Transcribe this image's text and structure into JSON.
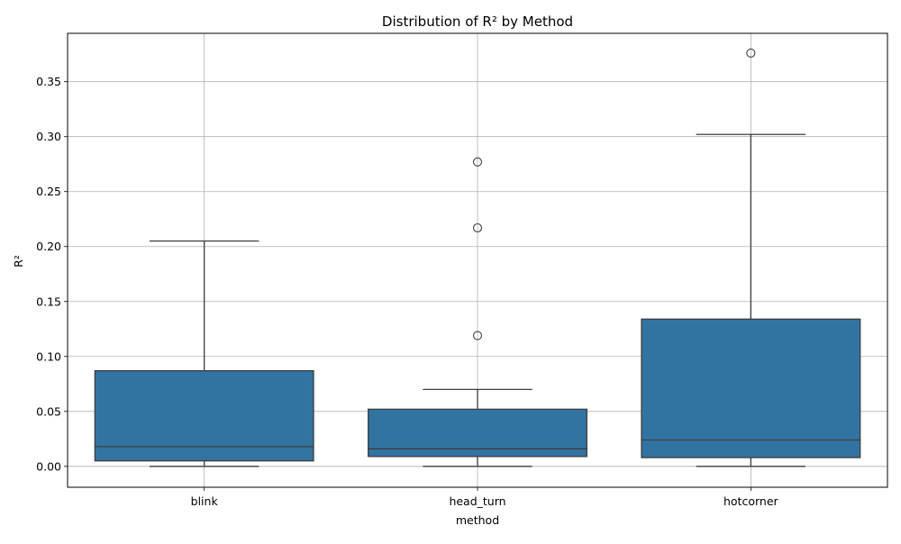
{
  "chart_data": {
    "type": "box",
    "title": "Distribution of R² by Method",
    "xlabel": "method",
    "ylabel": "R²",
    "ylim": [
      -0.019,
      0.394
    ],
    "yticks": [
      {
        "value": 0.0,
        "label": "0.00"
      },
      {
        "value": 0.05,
        "label": "0.05"
      },
      {
        "value": 0.1,
        "label": "0.10"
      },
      {
        "value": 0.15,
        "label": "0.15"
      },
      {
        "value": 0.2,
        "label": "0.20"
      },
      {
        "value": 0.25,
        "label": "0.25"
      },
      {
        "value": 0.3,
        "label": "0.30"
      },
      {
        "value": 0.35,
        "label": "0.35"
      }
    ],
    "grid": true,
    "box_color": "#3274a1",
    "line_color": "#3d3d3d",
    "categories": [
      "blink",
      "head_turn",
      "hotcorner"
    ],
    "boxes": [
      {
        "category": "blink",
        "whisker_low": 0.0,
        "q1": 0.005,
        "median": 0.018,
        "q3": 0.087,
        "whisker_high": 0.205,
        "outliers": []
      },
      {
        "category": "head_turn",
        "whisker_low": 0.0,
        "q1": 0.009,
        "median": 0.016,
        "q3": 0.052,
        "whisker_high": 0.07,
        "outliers": [
          0.119,
          0.217,
          0.277
        ]
      },
      {
        "category": "hotcorner",
        "whisker_low": 0.0,
        "q1": 0.008,
        "median": 0.024,
        "q3": 0.134,
        "whisker_high": 0.302,
        "outliers": [
          0.376
        ]
      }
    ]
  }
}
